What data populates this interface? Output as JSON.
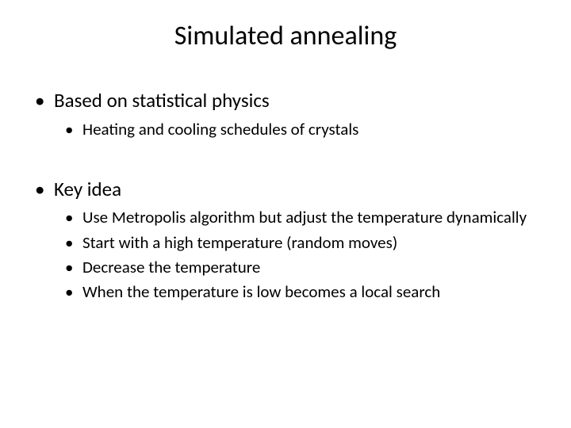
{
  "title": "Simulated annealing",
  "section1": {
    "heading": "Based on statistical physics",
    "items": [
      "Heating and cooling schedules of crystals"
    ]
  },
  "section2": {
    "heading": "Key idea",
    "items": [
      "Use Metropolis algorithm but adjust the temperature dynamically",
      "Start with a high temperature (random moves)",
      "Decrease the temperature",
      "When the temperature is low becomes a local search"
    ]
  },
  "colors": {
    "background": "#ffffff",
    "text": "#000000"
  },
  "typography": {
    "title_fontsize": 34,
    "l1_fontsize": 25,
    "l2_fontsize": 21,
    "font_family": "Calibri"
  }
}
